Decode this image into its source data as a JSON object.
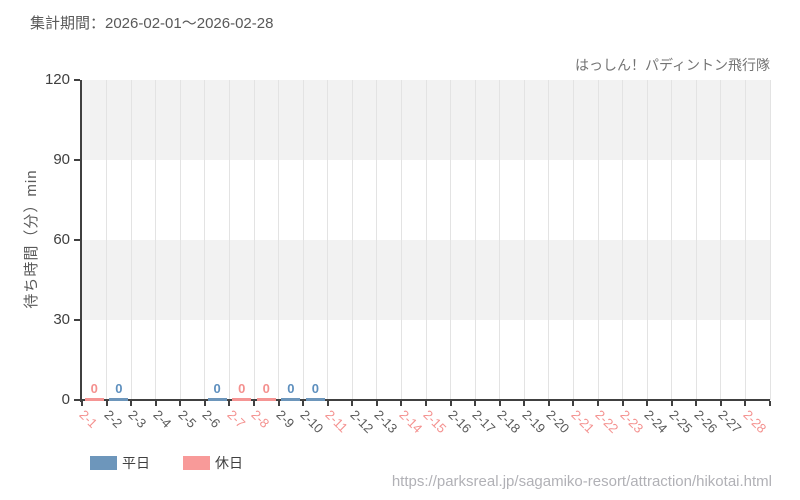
{
  "header": {
    "period_label": "集計期間：2026-02-01～2026-02-28",
    "attraction_name": "はっしん！パディントン飛行隊"
  },
  "footer": {
    "url": "https://parksreal.jp/sagamiko-resort/attraction/hikotai.html"
  },
  "legend": [
    {
      "label": "平日",
      "color": "#6d96bb"
    },
    {
      "label": "休日",
      "color": "#f89a99"
    }
  ],
  "colors": {
    "band": "#f2f2f2",
    "gridline": "#e3e3e3",
    "axis": "#404040",
    "y_tick_label": "#404040",
    "weekday_date_label": "#595959",
    "holiday_date_label": "#f4918f"
  },
  "chart_data": {
    "type": "bar",
    "title": "集計期間：2026-02-01～2026-02-28",
    "subtitle": "はっしん！パディントン飛行隊",
    "xlabel": "",
    "ylabel": "待ち時間（分）min",
    "ylim": [
      0,
      120
    ],
    "yticks": [
      0,
      30,
      60,
      90,
      120
    ],
    "grid": true,
    "legend_position": "bottom-left",
    "categories": [
      "2-1",
      "2-2",
      "2-3",
      "2-4",
      "2-5",
      "2-6",
      "2-7",
      "2-8",
      "2-9",
      "2-10",
      "2-11",
      "2-12",
      "2-13",
      "2-14",
      "2-15",
      "2-16",
      "2-17",
      "2-18",
      "2-19",
      "2-20",
      "2-21",
      "2-22",
      "2-23",
      "2-24",
      "2-25",
      "2-26",
      "2-27",
      "2-28"
    ],
    "holiday_categories": [
      "2-1",
      "2-7",
      "2-8",
      "2-11",
      "2-14",
      "2-15",
      "2-21",
      "2-22",
      "2-23",
      "2-28"
    ],
    "series": [
      {
        "name": "平日",
        "color": "#6d96bb",
        "label_color": "#5d8fbe",
        "values": [
          null,
          0,
          null,
          null,
          null,
          0,
          null,
          null,
          0,
          0,
          null,
          null,
          null,
          null,
          null,
          null,
          null,
          null,
          null,
          null,
          null,
          null,
          null,
          null,
          null,
          null,
          null,
          null
        ]
      },
      {
        "name": "休日",
        "color": "#f59594",
        "label_color": "#f4908e",
        "values": [
          0,
          null,
          null,
          null,
          null,
          null,
          0,
          0,
          null,
          null,
          null,
          null,
          null,
          null,
          null,
          null,
          null,
          null,
          null,
          null,
          null,
          null,
          null,
          null,
          null,
          null,
          null,
          null
        ]
      }
    ]
  }
}
